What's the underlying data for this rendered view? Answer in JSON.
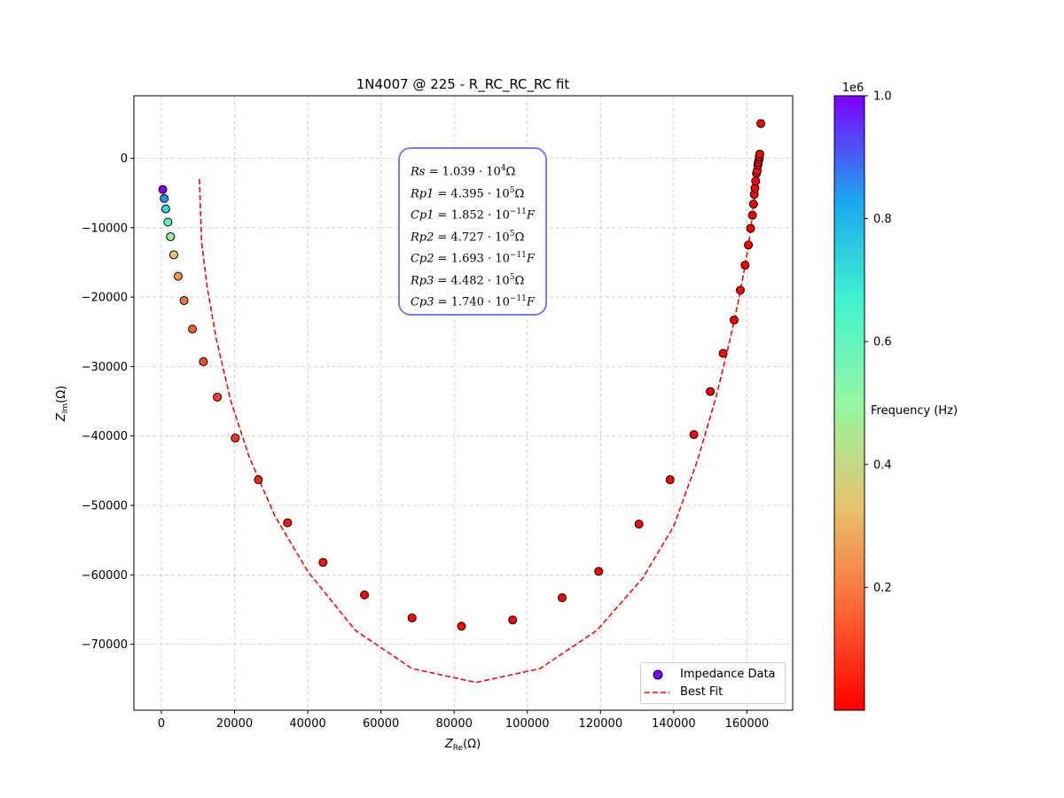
{
  "chart_data": {
    "type": "scatter",
    "title": "1N4007 @ 225 - R_RC_RC_RC fit",
    "xlabel": "Z",
    "xlabel_sub": "Re",
    "xlabel_unit": "(Ω)",
    "ylabel": "Z",
    "ylabel_sub": "Im",
    "ylabel_unit": "(Ω)",
    "xlim": [
      -7500,
      172500
    ],
    "ylim": [
      -79500,
      9000
    ],
    "x_ticks": [
      0,
      20000,
      40000,
      60000,
      80000,
      100000,
      120000,
      140000,
      160000
    ],
    "x_tick_labels": [
      "0",
      "20000",
      "40000",
      "60000",
      "80000",
      "100000",
      "120000",
      "140000",
      "160000"
    ],
    "y_ticks": [
      0,
      -10000,
      -20000,
      -30000,
      -40000,
      -50000,
      -60000,
      -70000
    ],
    "y_tick_labels": [
      "0",
      "−10000",
      "−20000",
      "−30000",
      "−40000",
      "−50000",
      "−60000",
      "−70000"
    ],
    "grid": true,
    "legend_position": "lower-right",
    "series": [
      {
        "name": "Impedance Data",
        "kind": "scatter",
        "points": [
          [
            400,
            -4500,
            1000000
          ],
          [
            800,
            -5800,
            850000
          ],
          [
            1200,
            -7300,
            720000
          ],
          [
            1800,
            -9200,
            600000
          ],
          [
            2500,
            -11300,
            480000
          ],
          [
            3400,
            -13900,
            340000
          ],
          [
            4600,
            -17000,
            250000
          ],
          [
            6200,
            -20500,
            180000
          ],
          [
            8500,
            -24600,
            150000
          ],
          [
            11500,
            -29300,
            120000
          ],
          [
            15300,
            -34400,
            100000
          ],
          [
            20200,
            -40300,
            80000
          ],
          [
            26500,
            -46300,
            60000
          ],
          [
            34500,
            -52500,
            40000
          ],
          [
            44200,
            -58200,
            25000
          ],
          [
            55500,
            -62900,
            15000
          ],
          [
            68500,
            -66200,
            8000
          ],
          [
            82000,
            -67400,
            5000
          ],
          [
            96000,
            -66500,
            3000
          ],
          [
            109500,
            -63300,
            2000
          ],
          [
            119500,
            -59500,
            1500
          ],
          [
            130500,
            -52700,
            1000
          ],
          [
            139000,
            -46300,
            800
          ],
          [
            145500,
            -39800,
            600
          ],
          [
            150000,
            -33600,
            500
          ],
          [
            153500,
            -28100,
            400
          ],
          [
            156500,
            -23300,
            300
          ],
          [
            158200,
            -19000,
            250
          ],
          [
            159500,
            -15400,
            200
          ],
          [
            160400,
            -12500,
            160
          ],
          [
            161000,
            -10100,
            130
          ],
          [
            161500,
            -8200,
            100
          ],
          [
            161800,
            -6600,
            80
          ],
          [
            162000,
            -5200,
            60
          ],
          [
            162200,
            -4300,
            50
          ],
          [
            162400,
            -3300,
            40
          ],
          [
            162600,
            -2200,
            30
          ],
          [
            162800,
            -1800,
            25
          ],
          [
            163000,
            -1000,
            20
          ],
          [
            163100,
            -600,
            16
          ],
          [
            163300,
            -200,
            13
          ],
          [
            163400,
            200,
            10
          ],
          [
            163500,
            600,
            8
          ],
          [
            163800,
            5000,
            5
          ]
        ]
      },
      {
        "name": "Best Fit",
        "kind": "line",
        "color": "#ff0000",
        "style": "dashed",
        "points": [
          [
            10400,
            -3000
          ],
          [
            11000,
            -12000
          ],
          [
            12500,
            -18500
          ],
          [
            15000,
            -26000
          ],
          [
            19000,
            -35000
          ],
          [
            24000,
            -43000
          ],
          [
            31000,
            -51500
          ],
          [
            40000,
            -59500
          ],
          [
            53000,
            -68000
          ],
          [
            68500,
            -73500
          ],
          [
            86000,
            -75500
          ],
          [
            103500,
            -73500
          ],
          [
            119000,
            -68000
          ],
          [
            131500,
            -60500
          ],
          [
            140000,
            -53000
          ],
          [
            146500,
            -43500
          ],
          [
            151500,
            -34500
          ],
          [
            155000,
            -27000
          ],
          [
            157500,
            -21000
          ],
          [
            159500,
            -15500
          ],
          [
            161000,
            -10500
          ],
          [
            162000,
            -5800
          ],
          [
            162500,
            -2200
          ],
          [
            162500,
            0
          ]
        ]
      }
    ],
    "colorbar": {
      "label": "Frequency (Hz)",
      "exponent_label": "1e6",
      "min": 0,
      "max": 1000000,
      "ticks": [
        200000,
        400000,
        600000,
        800000,
        1000000
      ],
      "tick_labels": [
        "0.2",
        "0.4",
        "0.6",
        "0.8",
        "1.0"
      ],
      "colormap": "rainbow"
    },
    "fit_params": [
      {
        "name": "Rs",
        "mantissa": "1.039",
        "exp": "4",
        "unit": "Ω"
      },
      {
        "name": "Rp1",
        "mantissa": "4.395",
        "exp": "5",
        "unit": "Ω"
      },
      {
        "name": "Cp1",
        "mantissa": "1.852",
        "exp": "−11",
        "unit": "F"
      },
      {
        "name": "Rp2",
        "mantissa": "4.727",
        "exp": "5",
        "unit": "Ω"
      },
      {
        "name": "Cp2",
        "mantissa": "1.693",
        "exp": "−11",
        "unit": "F"
      },
      {
        "name": "Rp3",
        "mantissa": "4.482",
        "exp": "5",
        "unit": "Ω"
      },
      {
        "name": "Cp3",
        "mantissa": "1.740",
        "exp": "−11",
        "unit": "F"
      }
    ]
  }
}
